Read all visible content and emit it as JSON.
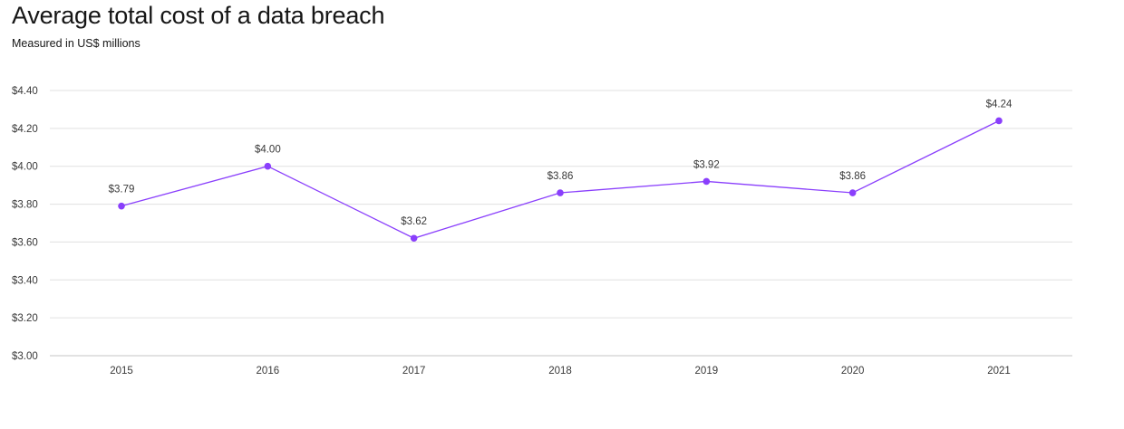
{
  "header": {
    "title": "Average total cost of a data breach",
    "subtitle": "Measured in US$ millions"
  },
  "colors": {
    "series": "#8a3ffc",
    "grid": "#e0e0e0",
    "text": "#393939"
  },
  "chart_data": {
    "type": "line",
    "title": "Average total cost of a data breach",
    "subtitle": "Measured in US$ millions",
    "xlabel": "",
    "ylabel": "",
    "x": [
      "2015",
      "2016",
      "2017",
      "2018",
      "2019",
      "2020",
      "2021"
    ],
    "series": [
      {
        "values": [
          3.79,
          4.0,
          3.62,
          3.86,
          3.92,
          3.86,
          4.24
        ],
        "labels": [
          "$3.79",
          "$4.00",
          "$3.62",
          "$3.86",
          "$3.92",
          "$3.86",
          "$4.24"
        ]
      }
    ],
    "ylim": [
      3.0,
      4.4
    ],
    "yticks": [
      3.0,
      3.2,
      3.4,
      3.6,
      3.8,
      4.0,
      4.2,
      4.4
    ],
    "ytick_labels": [
      "$3.00",
      "$3.20",
      "$3.40",
      "$3.60",
      "$3.80",
      "$4.00",
      "$4.20",
      "$4.40"
    ],
    "grid": true,
    "legend": "none"
  }
}
